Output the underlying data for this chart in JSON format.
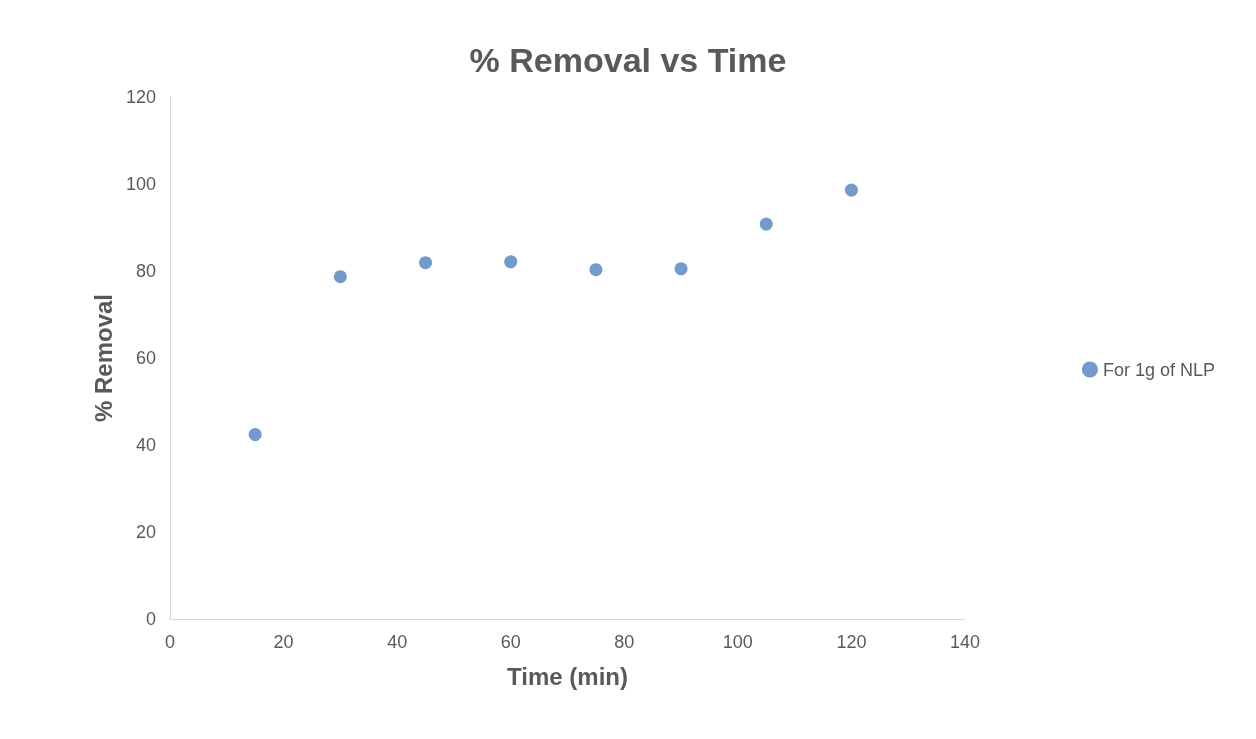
{
  "chart_data": {
    "type": "scatter",
    "title": "% Removal vs Time",
    "xlabel": "Time (min)",
    "ylabel": "% Removal",
    "x": [
      15,
      30,
      45,
      60,
      75,
      90,
      105,
      120
    ],
    "series": [
      {
        "name": "For 1g of NLP",
        "color": "#4f81bd",
        "values": [
          42.4,
          78.7,
          81.9,
          82.1,
          80.3,
          80.5,
          90.8,
          98.6
        ]
      }
    ],
    "xlim": [
      0,
      140
    ],
    "xticks": [
      0,
      20,
      40,
      60,
      80,
      100,
      120,
      140
    ],
    "ylim": [
      0,
      120
    ],
    "yticks": [
      0,
      20,
      40,
      60,
      80,
      100,
      120
    ],
    "grid": false,
    "legend": "right",
    "marker": "circle"
  }
}
